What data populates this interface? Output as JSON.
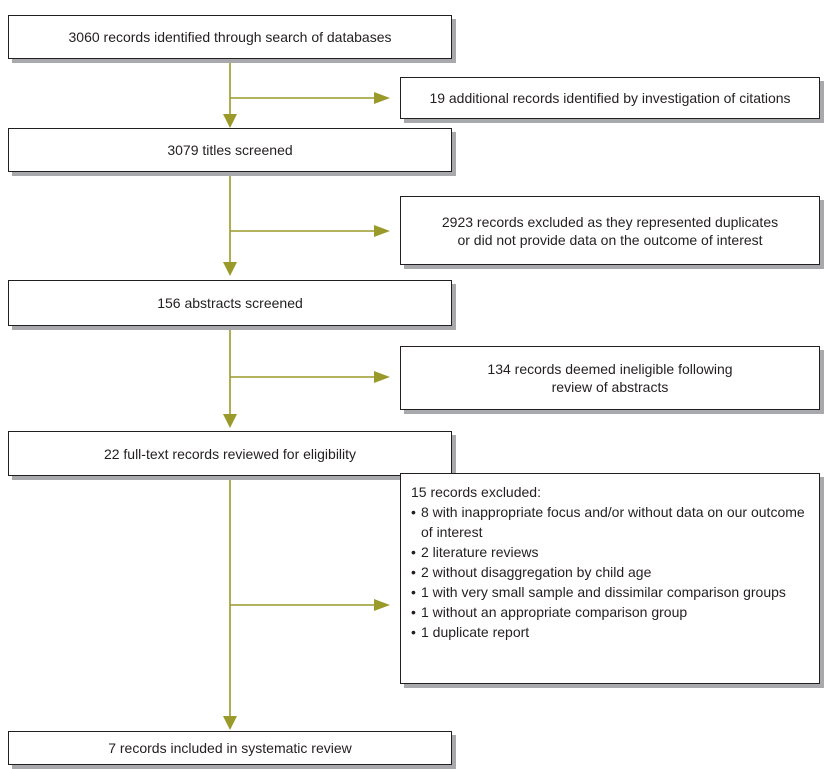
{
  "colors": {
    "arrow": "#9a9a2a",
    "border": "#231f20",
    "shadow": "#a7a9ac"
  },
  "main": {
    "identified": "3060 records identified through search of databases",
    "titles_screened": "3079 titles screened",
    "abstracts_screened": "156 abstracts screened",
    "fulltext_reviewed": "22 full-text records reviewed for eligibility",
    "included": "7 records included in systematic review"
  },
  "side": {
    "additional": "19 additional records identified by investigation of citations",
    "excluded_duplicates_line1": "2923 records excluded as they represented duplicates",
    "excluded_duplicates_line2": "or did not provide data on the outcome of interest",
    "ineligible_line1": "134 records deemed ineligible following",
    "ineligible_line2": "review of abstracts",
    "excluded_fulltext": {
      "heading": "15 records excluded:",
      "items": [
        "8 with inappropriate focus and/or without data on our outcome of interest",
        "2 literature reviews",
        "2 without disaggregation by child age",
        "1 with very small sample and dissimilar comparison groups",
        "1 without an appropriate comparison group",
        "1 duplicate report"
      ]
    }
  }
}
